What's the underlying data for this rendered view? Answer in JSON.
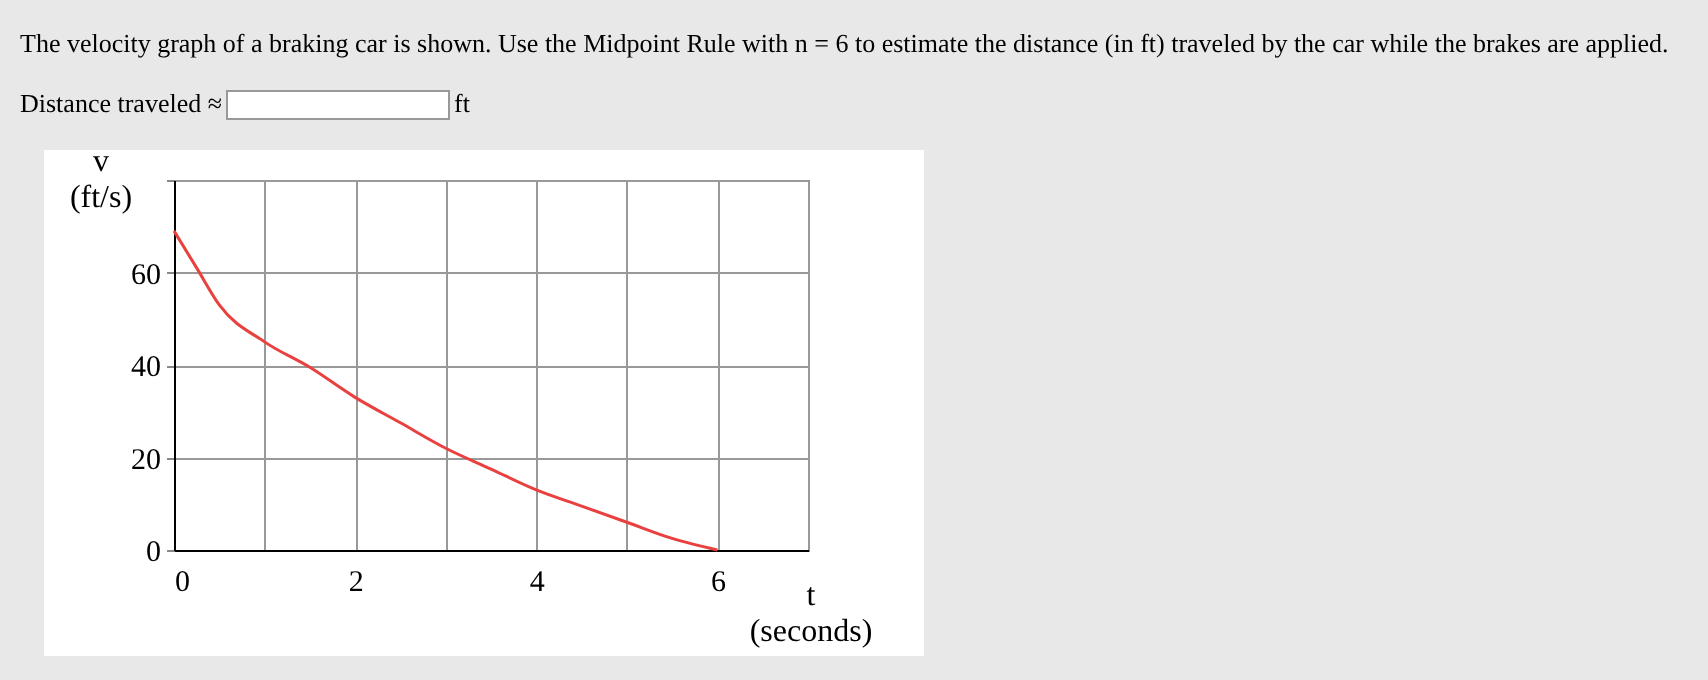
{
  "chart_data": {
    "type": "line",
    "title": "The velocity graph of a braking car is shown. Use the Midpoint Rule with n = 6 to estimate the distance (in ft) traveled by the car while the brakes are applied.",
    "annotations": [
      "Distance traveled ≈",
      "ft"
    ],
    "xlabel": "t (seconds)",
    "ylabel": "v (ft/s)",
    "x": [
      0,
      0.25,
      0.5,
      1,
      1.5,
      2,
      2.5,
      3,
      3.5,
      4,
      4.5,
      5,
      5.5,
      6
    ],
    "series": [
      {
        "color": "#e8413f",
        "values": [
          69,
          61,
          53,
          45,
          39.5,
          33,
          27.5,
          22,
          17.5,
          13,
          9.5,
          6,
          2.5,
          0
        ]
      }
    ],
    "xlim": [
      0,
      7
    ],
    "xticks": [
      0,
      {
        "value": 1,
        "label": null
      },
      2,
      {
        "value": 3,
        "label": null
      },
      4,
      {
        "value": 5,
        "label": null
      },
      6,
      {
        "value": 7,
        "label": null
      }
    ],
    "ylim": [
      0,
      80
    ],
    "yticks": [
      0,
      20,
      40,
      60,
      {
        "value": 80,
        "label": null
      }
    ],
    "grid": true,
    "marker": "none",
    "line_style": "solid"
  }
}
